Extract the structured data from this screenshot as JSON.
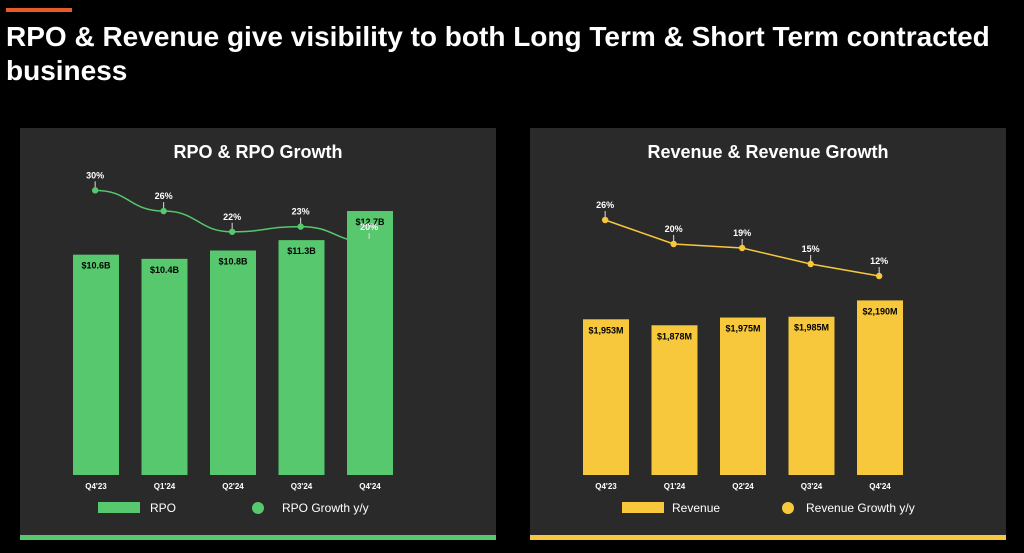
{
  "slide": {
    "title": "RPO & Revenue give visibility to both Long Term & Short Term contracted business"
  },
  "colors": {
    "accent": "#e85a2a",
    "rpo": "#57c86d",
    "revenue": "#f7c83c",
    "panel_bg": "#2a2a2a"
  },
  "chart_data": [
    {
      "id": "rpo",
      "type": "bar",
      "title": "RPO & RPO Growth",
      "categories": [
        "Q4'23",
        "Q1'24",
        "Q2'24",
        "Q3'24",
        "Q4'24"
      ],
      "series": [
        {
          "name": "RPO",
          "kind": "bar",
          "values": [
            10.6,
            10.4,
            10.8,
            11.3,
            12.7
          ],
          "labels": [
            "$10.6B",
            "$10.4B",
            "$10.8B",
            "$11.3B",
            "$12.7B"
          ]
        },
        {
          "name": "RPO Growth y/y",
          "kind": "line",
          "values": [
            30,
            26,
            22,
            23,
            20
          ],
          "labels": [
            "30%",
            "26%",
            "22%",
            "23%",
            "20%"
          ]
        }
      ],
      "bar_range": [
        0,
        14.0
      ],
      "line_range": [
        15,
        32
      ],
      "legend": [
        "RPO",
        "RPO Growth y/y"
      ]
    },
    {
      "id": "revenue",
      "type": "bar",
      "title": "Revenue & Revenue Growth",
      "categories": [
        "Q4'23",
        "Q1'24",
        "Q2'24",
        "Q3'24",
        "Q4'24"
      ],
      "series": [
        {
          "name": "Revenue",
          "kind": "bar",
          "values": [
            1953,
            1878,
            1975,
            1985,
            2190
          ],
          "labels": [
            "$1,953M",
            "$1,878M",
            "$1,975M",
            "$1,985M",
            "$2,190M"
          ]
        },
        {
          "name": "Revenue Growth y/y",
          "kind": "line",
          "values": [
            26,
            20,
            19,
            15,
            12
          ],
          "labels": [
            "26%",
            "20%",
            "19%",
            "15%",
            "12%"
          ]
        }
      ],
      "bar_range": [
        0,
        3650
      ],
      "line_range": [
        5,
        30
      ],
      "legend": [
        "Revenue",
        "Revenue Growth y/y"
      ]
    }
  ]
}
